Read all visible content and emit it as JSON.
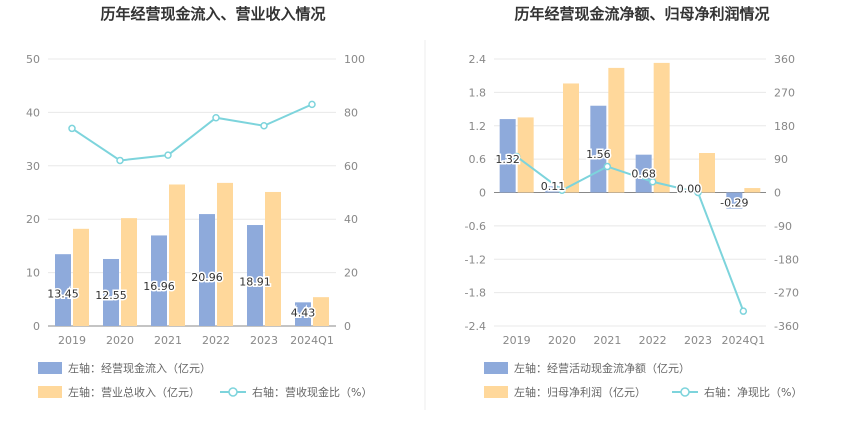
{
  "colors": {
    "blue": "#8eaadb",
    "orange": "#ffd89b",
    "line": "#7dd4dc",
    "grid": "#e8e8e8",
    "axis": "#333333",
    "divider": "#eeeeee"
  },
  "chart_data": [
    {
      "type": "bar",
      "title": "历年经营现金流入、营业收入情况",
      "categories": [
        "2019",
        "2020",
        "2021",
        "2022",
        "2023",
        "2024Q1"
      ],
      "ylim_left": [
        0,
        50
      ],
      "yticks_left": [
        "0",
        "10",
        "20",
        "30",
        "40",
        "50"
      ],
      "ylim_right": [
        0,
        100
      ],
      "yticks_right": [
        "0",
        "20",
        "40",
        "60",
        "80",
        "100"
      ],
      "series": [
        {
          "name": "左轴：经营现金流入（亿元）",
          "kind": "bar",
          "axis": "left",
          "values": [
            13.45,
            12.55,
            16.96,
            20.96,
            18.91,
            4.43
          ],
          "labels": [
            "13.45",
            "12.55",
            "16.96",
            "20.96",
            "18.91",
            "4.43"
          ]
        },
        {
          "name": "左轴：营业总收入（亿元）",
          "kind": "bar",
          "axis": "left",
          "values": [
            18.2,
            20.2,
            26.5,
            26.8,
            25.1,
            5.4
          ]
        },
        {
          "name": "右轴：营收现金比（%）",
          "kind": "line",
          "axis": "right",
          "values": [
            74,
            62,
            64,
            78,
            75,
            83
          ]
        }
      ],
      "grid": true
    },
    {
      "type": "bar",
      "title": "历年经营现金流净额、归母净利润情况",
      "categories": [
        "2019",
        "2020",
        "2021",
        "2022",
        "2023",
        "2024Q1"
      ],
      "ylim_left": [
        -2.4,
        2.4
      ],
      "yticks_left": [
        "-2.4",
        "-1.8",
        "-1.2",
        "-0.6",
        "0",
        "0.6",
        "1.2",
        "1.8",
        "2.4"
      ],
      "ylim_right": [
        -360,
        360
      ],
      "yticks_right": [
        "-360",
        "-270",
        "-180",
        "-90",
        "0",
        "90",
        "180",
        "270",
        "360"
      ],
      "series": [
        {
          "name": "左轴：经营活动现金流净额（亿元）",
          "kind": "bar",
          "axis": "left",
          "values": [
            1.32,
            0.11,
            1.56,
            0.68,
            0.0,
            -0.29
          ],
          "labels": [
            "1.32",
            "0.11",
            "1.56",
            "0.68",
            "0.00",
            "-0.29"
          ]
        },
        {
          "name": "左轴：归母净利润（亿元）",
          "kind": "bar",
          "axis": "left",
          "values": [
            1.35,
            1.96,
            2.24,
            2.33,
            0.71,
            0.08
          ]
        },
        {
          "name": "右轴：净现比（%）",
          "kind": "line",
          "axis": "right",
          "values": [
            97,
            6,
            70,
            29,
            0,
            -320
          ]
        }
      ],
      "grid": true
    }
  ]
}
